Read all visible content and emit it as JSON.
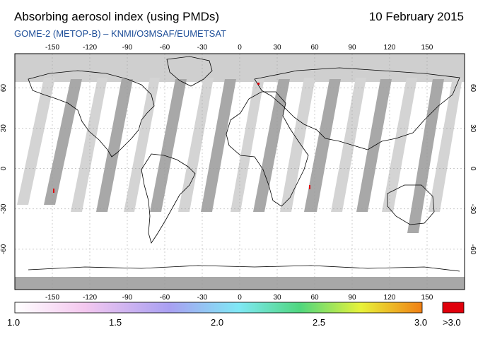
{
  "header": {
    "title": "Absorbing aerosol index (using PMDs)",
    "date": "10 February 2015",
    "subtitle": "GOME-2 (METOP-B)  –  KNMI/O3MSAF/EUMETSAT"
  },
  "map": {
    "projection": "equirectangular",
    "lon_ticks": [
      "-150",
      "-120",
      "-90",
      "-60",
      "-30",
      "0",
      "30",
      "60",
      "90",
      "120",
      "150"
    ],
    "lat_ticks": [
      "60",
      "30",
      "0",
      "-30",
      "-60"
    ],
    "colors": {
      "no_data": "#cfcfcf",
      "orbit_gap": "#a8a8a8",
      "land_outline": "#000000",
      "high_aai": "#e0000b"
    }
  },
  "colorbar": {
    "labels": [
      "1.0",
      "1.5",
      "2.0",
      "2.5",
      "3.0",
      ">3.0"
    ],
    "range": [
      1.0,
      3.0
    ],
    "colors": [
      "#ffffff",
      "#f4c8ef",
      "#a9a0f2",
      "#7fe8f5",
      "#4fd67e",
      "#e8f23a",
      "#f07f14",
      "#e0000b"
    ]
  }
}
